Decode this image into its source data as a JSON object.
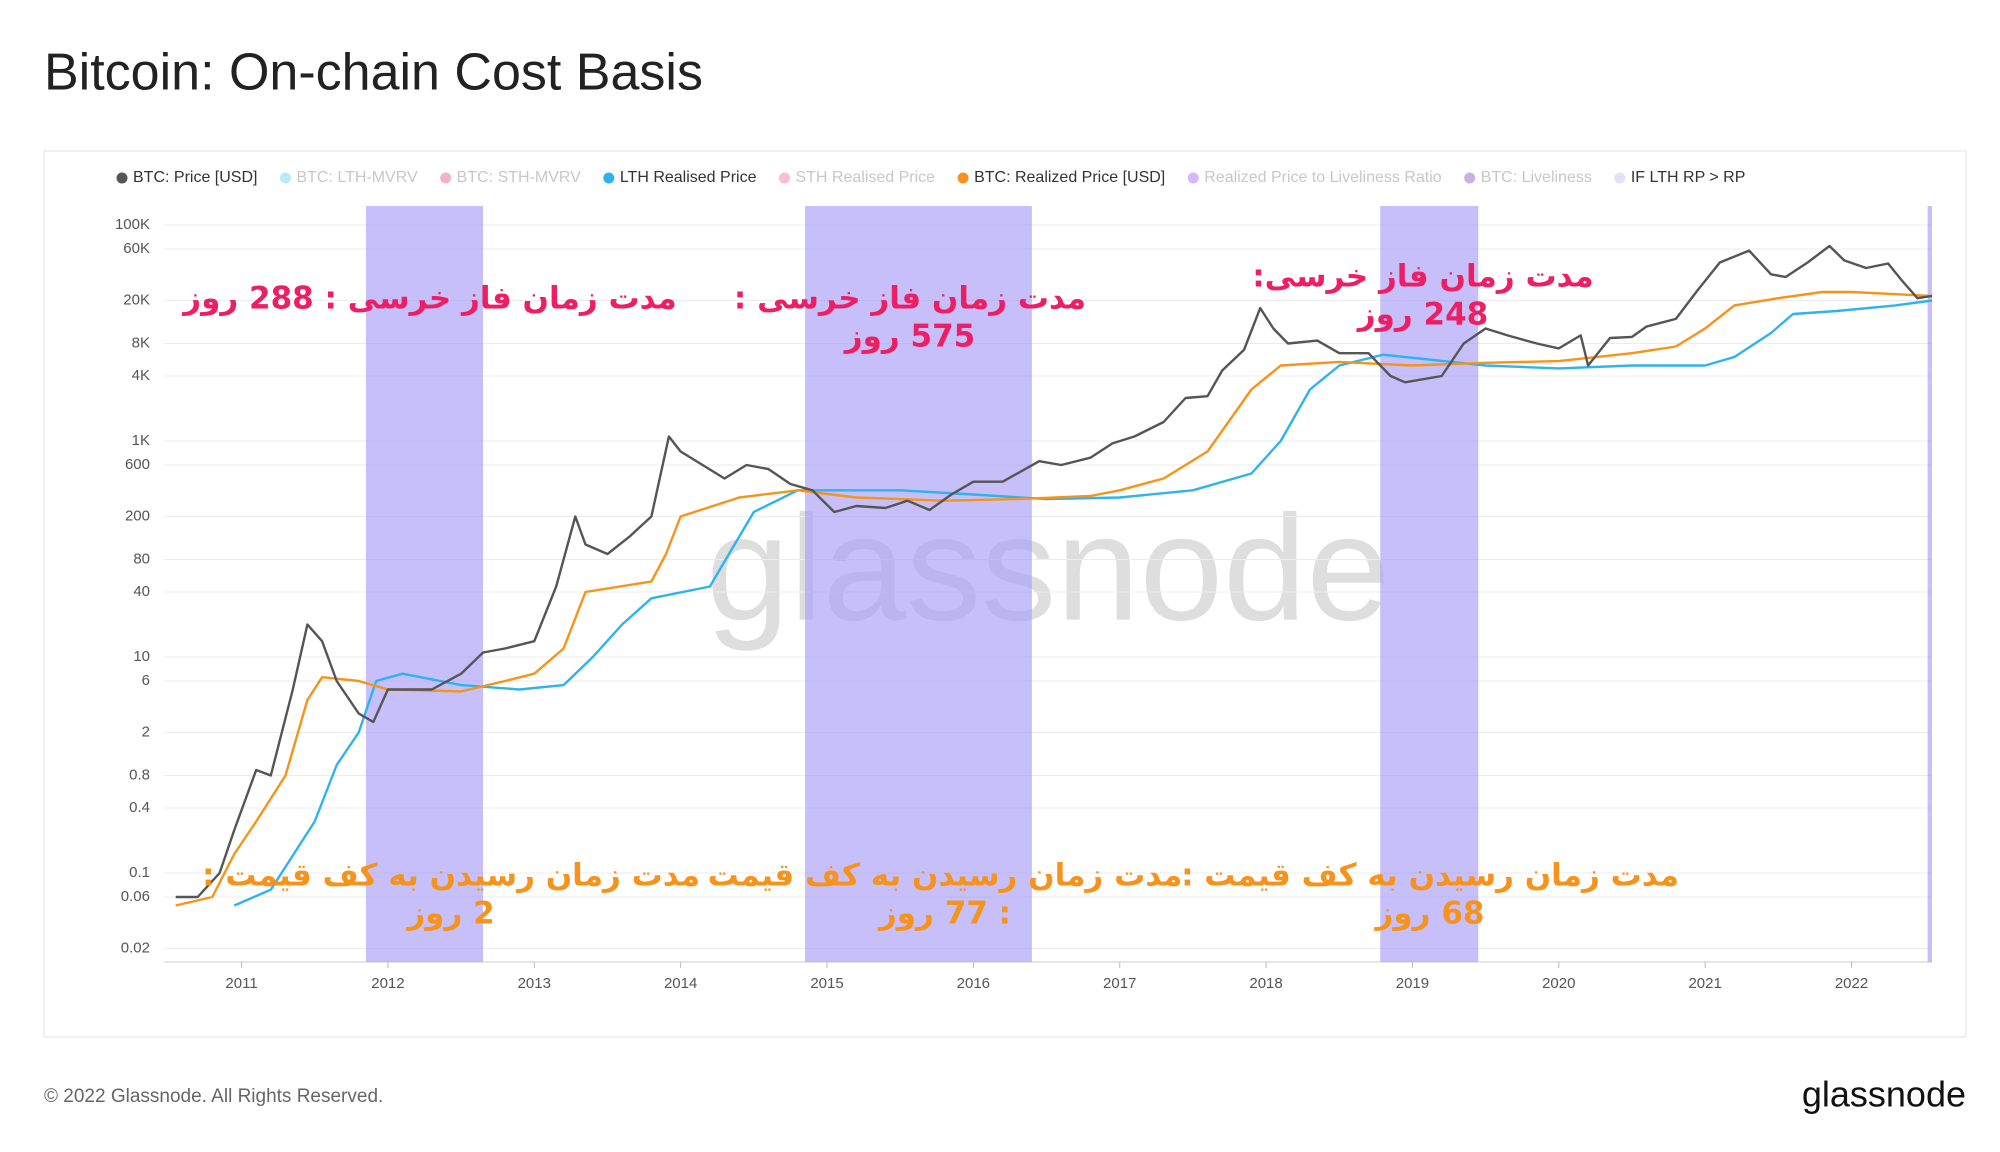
{
  "chart_data": {
    "type": "line",
    "title": "Bitcoin: On-chain Cost Basis",
    "watermark": "glassnode",
    "footer": "© 2022 Glassnode. All Rights Reserved.",
    "brand": "glassnode",
    "log_scale": true,
    "grid": true,
    "legend": "top",
    "xlim": [
      2010.47,
      2022.55
    ],
    "xticks": [
      2011,
      2012,
      2013,
      2014,
      2015,
      2016,
      2017,
      2018,
      2019,
      2020,
      2021,
      2022
    ],
    "ylim": [
      0.015,
      150000
    ],
    "yticks": [
      0.02,
      0.06,
      0.1,
      0.4,
      0.8,
      2,
      6,
      10,
      40,
      80,
      200,
      600,
      {
        "value": 1000,
        "label": "1K"
      },
      {
        "value": 4000,
        "label": "4K"
      },
      {
        "value": 8000,
        "label": "8K"
      },
      {
        "value": 20000,
        "label": "20K"
      },
      {
        "value": 60000,
        "label": "60K"
      },
      {
        "value": 100000,
        "label": "100K"
      }
    ],
    "series": [
      {
        "name": "BTC: Price [USD]",
        "color": "#555555",
        "x": [
          2010.55,
          2010.7,
          2010.85,
          2010.95,
          2011.1,
          2011.2,
          2011.35,
          2011.45,
          2011.55,
          2011.65,
          2011.8,
          2011.9,
          2012.0,
          2012.15,
          2012.3,
          2012.5,
          2012.65,
          2012.8,
          2013.0,
          2013.15,
          2013.28,
          2013.35,
          2013.5,
          2013.65,
          2013.8,
          2013.92,
          2014.0,
          2014.15,
          2014.3,
          2014.45,
          2014.6,
          2014.75,
          2014.9,
          2015.05,
          2015.2,
          2015.4,
          2015.55,
          2015.7,
          2015.85,
          2016.0,
          2016.2,
          2016.45,
          2016.6,
          2016.8,
          2016.95,
          2017.1,
          2017.3,
          2017.45,
          2017.6,
          2017.7,
          2017.85,
          2017.96,
          2018.05,
          2018.15,
          2018.35,
          2018.5,
          2018.7,
          2018.85,
          2018.95,
          2019.2,
          2019.35,
          2019.5,
          2019.65,
          2019.85,
          2020.0,
          2020.15,
          2020.2,
          2020.35,
          2020.5,
          2020.6,
          2020.8,
          2020.95,
          2021.1,
          2021.3,
          2021.45,
          2021.55,
          2021.7,
          2021.85,
          2021.95,
          2022.1,
          2022.25,
          2022.35,
          2022.45,
          2022.55
        ],
        "values": [
          0.06,
          0.06,
          0.1,
          0.25,
          0.9,
          0.8,
          5,
          20,
          14,
          6,
          3,
          2.5,
          5,
          5,
          5,
          7,
          11,
          12,
          14,
          45,
          200,
          110,
          90,
          130,
          200,
          1100,
          800,
          600,
          450,
          600,
          550,
          400,
          350,
          220,
          250,
          240,
          280,
          230,
          320,
          420,
          420,
          650,
          600,
          700,
          950,
          1100,
          1500,
          2500,
          2600,
          4500,
          7000,
          17000,
          11000,
          8000,
          8500,
          6500,
          6500,
          4000,
          3500,
          4000,
          8000,
          11000,
          9500,
          8000,
          7200,
          9500,
          5000,
          9000,
          9200,
          11500,
          13500,
          25000,
          45000,
          58000,
          35000,
          33000,
          45000,
          64000,
          47000,
          40000,
          44000,
          30000,
          21000,
          22000
        ]
      },
      {
        "name": "BTC: LTH-MVRV",
        "color": "#38bdf8",
        "hidden": true
      },
      {
        "name": "BTC: STH-MVRV",
        "color": "#d6246e",
        "hidden": true
      },
      {
        "name": "LTH Realised Price",
        "color": "#2fb2f0",
        "x": [
          2010.95,
          2011.2,
          2011.5,
          2011.65,
          2011.8,
          2011.92,
          2012.1,
          2012.5,
          2012.9,
          2013.2,
          2013.4,
          2013.6,
          2013.8,
          2014.2,
          2014.35,
          2014.5,
          2014.8,
          2015.5,
          2016.0,
          2016.5,
          2017.0,
          2017.5,
          2017.9,
          2018.1,
          2018.3,
          2018.5,
          2018.8,
          2019.5,
          2020.0,
          2020.5,
          2021.0,
          2021.2,
          2021.45,
          2021.6,
          2021.9,
          2022.3,
          2022.55
        ],
        "values": [
          0.05,
          0.07,
          0.3,
          1,
          2,
          6,
          7,
          5.5,
          5,
          5.5,
          10,
          20,
          35,
          45,
          100,
          220,
          350,
          350,
          320,
          290,
          300,
          350,
          500,
          1000,
          3000,
          5000,
          6300,
          5000,
          4700,
          5000,
          5000,
          6000,
          10000,
          15000,
          16000,
          18000,
          20000
        ]
      },
      {
        "name": "STH Realised Price",
        "color": "#f43f8e",
        "hidden": true
      },
      {
        "name": "BTC: Realized Price [USD]",
        "color": "#f7931a",
        "x": [
          2010.55,
          2010.8,
          2010.95,
          2011.1,
          2011.3,
          2011.45,
          2011.55,
          2011.8,
          2012.0,
          2012.5,
          2012.8,
          2013.0,
          2013.2,
          2013.35,
          2013.8,
          2013.9,
          2014.0,
          2014.4,
          2014.8,
          2015.2,
          2015.8,
          2016.3,
          2016.8,
          2017.0,
          2017.3,
          2017.6,
          2017.9,
          2018.1,
          2018.5,
          2019.0,
          2019.5,
          2020.0,
          2020.5,
          2020.8,
          2021.0,
          2021.2,
          2021.5,
          2021.8,
          2022.0,
          2022.55
        ],
        "values": [
          0.05,
          0.06,
          0.15,
          0.3,
          0.8,
          4,
          6.5,
          6,
          5,
          4.8,
          6,
          7,
          12,
          40,
          50,
          90,
          200,
          300,
          350,
          300,
          280,
          290,
          310,
          350,
          450,
          800,
          3000,
          5000,
          5400,
          5000,
          5300,
          5500,
          6500,
          7500,
          11000,
          18000,
          21000,
          24000,
          24000,
          22000
        ]
      },
      {
        "name": "Realized Price to Liveliness Ratio",
        "color": "#8b2ef7",
        "hidden": true
      },
      {
        "name": "BTC: Liveliness",
        "color": "#5b1fa8",
        "hidden": true
      },
      {
        "name": "IF LTH RP > RP",
        "color": "#e4e0fc",
        "fill": "#a89df6",
        "ranges": [
          [
            2011.85,
            2012.65
          ],
          [
            2014.85,
            2016.4
          ],
          [
            2018.78,
            2019.45
          ],
          [
            2022.52,
            2022.55
          ]
        ]
      }
    ],
    "annotations": [
      {
        "color": "#ee1e64",
        "lines": [
          "مدت زمان فاز خرسی : 288 روز"
        ]
      },
      {
        "color": "#ee1e64",
        "lines": [
          "مدت زمان فاز خرسی :",
          "575 روز"
        ]
      },
      {
        "color": "#ee1e64",
        "lines": [
          "مدت زمان فاز خرسی:",
          "248 روز"
        ]
      },
      {
        "color": "#f7931a",
        "lines": [
          "مدت زمان رسیدن به کف قیمت :",
          "2 روز"
        ]
      },
      {
        "color": "#f7931a",
        "lines": [
          "مدت زمان رسیدن به کف قیمت",
          ": 77 روز"
        ]
      },
      {
        "color": "#f7931a",
        "lines": [
          "مدت زمان رسیدن به کف قیمت :",
          "68 روز"
        ]
      }
    ]
  }
}
